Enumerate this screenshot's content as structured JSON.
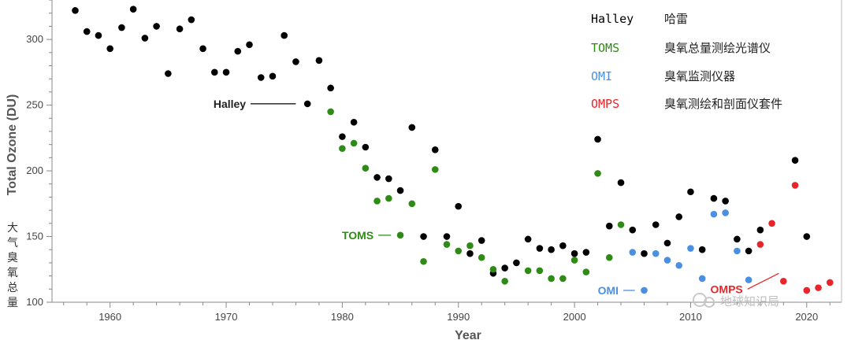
{
  "chart_data": {
    "type": "scatter",
    "title": "",
    "xlabel": "Year",
    "ylabel": "Total Ozone (DU)",
    "ylabel_cn": "大气臭氧总量",
    "xlim": [
      1955,
      2023
    ],
    "ylim": [
      100,
      330
    ],
    "xticks": [
      1960,
      1970,
      1980,
      1990,
      2000,
      2010,
      2020
    ],
    "yticks": [
      100,
      150,
      200,
      250,
      300
    ],
    "grid": false,
    "legend_position": "top-right",
    "series": [
      {
        "name": "Halley",
        "name_cn": "哈雷",
        "color": "#000000",
        "points": [
          [
            1957,
            322
          ],
          [
            1958,
            306
          ],
          [
            1959,
            303
          ],
          [
            1960,
            293
          ],
          [
            1961,
            309
          ],
          [
            1962,
            323
          ],
          [
            1963,
            301
          ],
          [
            1964,
            310
          ],
          [
            1965,
            274
          ],
          [
            1966,
            308
          ],
          [
            1967,
            315
          ],
          [
            1968,
            293
          ],
          [
            1969,
            275
          ],
          [
            1970,
            275
          ],
          [
            1971,
            291
          ],
          [
            1972,
            296
          ],
          [
            1973,
            271
          ],
          [
            1974,
            272
          ],
          [
            1975,
            303
          ],
          [
            1976,
            283
          ],
          [
            1977,
            251
          ],
          [
            1978,
            284
          ],
          [
            1979,
            263
          ],
          [
            1980,
            226
          ],
          [
            1981,
            237
          ],
          [
            1982,
            218
          ],
          [
            1983,
            195
          ],
          [
            1984,
            194
          ],
          [
            1985,
            185
          ],
          [
            1986,
            233
          ],
          [
            1987,
            150
          ],
          [
            1988,
            216
          ],
          [
            1989,
            150
          ],
          [
            1990,
            173
          ],
          [
            1991,
            137
          ],
          [
            1992,
            147
          ],
          [
            1993,
            122
          ],
          [
            1994,
            126
          ],
          [
            1995,
            130
          ],
          [
            1996,
            148
          ],
          [
            1997,
            141
          ],
          [
            1998,
            140
          ],
          [
            1999,
            143
          ],
          [
            2000,
            137
          ],
          [
            2001,
            138
          ],
          [
            2002,
            224
          ],
          [
            2003,
            158
          ],
          [
            2004,
            191
          ],
          [
            2005,
            155
          ],
          [
            2006,
            137
          ],
          [
            2007,
            159
          ],
          [
            2008,
            145
          ],
          [
            2009,
            165
          ],
          [
            2010,
            184
          ],
          [
            2011,
            140
          ],
          [
            2012,
            179
          ],
          [
            2013,
            177
          ],
          [
            2014,
            148
          ],
          [
            2015,
            139
          ],
          [
            2016,
            155
          ],
          [
            2019,
            208
          ],
          [
            2020,
            150
          ]
        ]
      },
      {
        "name": "TOMS",
        "name_cn": "臭氧总量测绘光谱仪",
        "color": "#2e8b15",
        "points": [
          [
            1979,
            245
          ],
          [
            1980,
            217
          ],
          [
            1981,
            221
          ],
          [
            1982,
            202
          ],
          [
            1983,
            177
          ],
          [
            1984,
            179
          ],
          [
            1985,
            151
          ],
          [
            1986,
            175
          ],
          [
            1987,
            131
          ],
          [
            1988,
            201
          ],
          [
            1989,
            144
          ],
          [
            1990,
            139
          ],
          [
            1991,
            143
          ],
          [
            1992,
            134
          ],
          [
            1993,
            125
          ],
          [
            1994,
            116
          ],
          [
            1996,
            124
          ],
          [
            1997,
            124
          ],
          [
            1998,
            118
          ],
          [
            1999,
            118
          ],
          [
            2000,
            132
          ],
          [
            2001,
            123
          ],
          [
            2002,
            198
          ],
          [
            2003,
            134
          ],
          [
            2004,
            159
          ]
        ]
      },
      {
        "name": "OMI",
        "name_cn": "臭氧监测仪器",
        "color": "#4a90e2",
        "points": [
          [
            2005,
            138
          ],
          [
            2006,
            109
          ],
          [
            2007,
            137
          ],
          [
            2008,
            132
          ],
          [
            2009,
            128
          ],
          [
            2010,
            141
          ],
          [
            2011,
            118
          ],
          [
            2012,
            167
          ],
          [
            2013,
            168
          ],
          [
            2014,
            139
          ],
          [
            2015,
            117
          ]
        ]
      },
      {
        "name": "OMPS",
        "name_cn": "臭氧测绘和剖面仪套件",
        "color": "#e8252a",
        "points": [
          [
            2016,
            144
          ],
          [
            2017,
            160
          ],
          [
            2018,
            116
          ],
          [
            2019,
            189
          ],
          [
            2020,
            109
          ],
          [
            2021,
            111
          ],
          [
            2022,
            115
          ]
        ]
      }
    ],
    "annotations": [
      {
        "text": "Halley",
        "series": "Halley",
        "x": 1971.7,
        "y": 251,
        "line_to_x": 1976
      },
      {
        "text": "TOMS",
        "series": "TOMS",
        "x": 1982.7,
        "y": 151,
        "line_to_x": 1984.2
      },
      {
        "text": "OMI",
        "series": "OMI",
        "x": 2003.8,
        "y": 109,
        "line_to_x": 2005.2
      },
      {
        "text": "OMPS",
        "series": "OMPS",
        "x": 2014.5,
        "y": 110,
        "line_to_x": 2017.6,
        "line_to_y": 122
      }
    ]
  },
  "watermark": "地球知识局"
}
